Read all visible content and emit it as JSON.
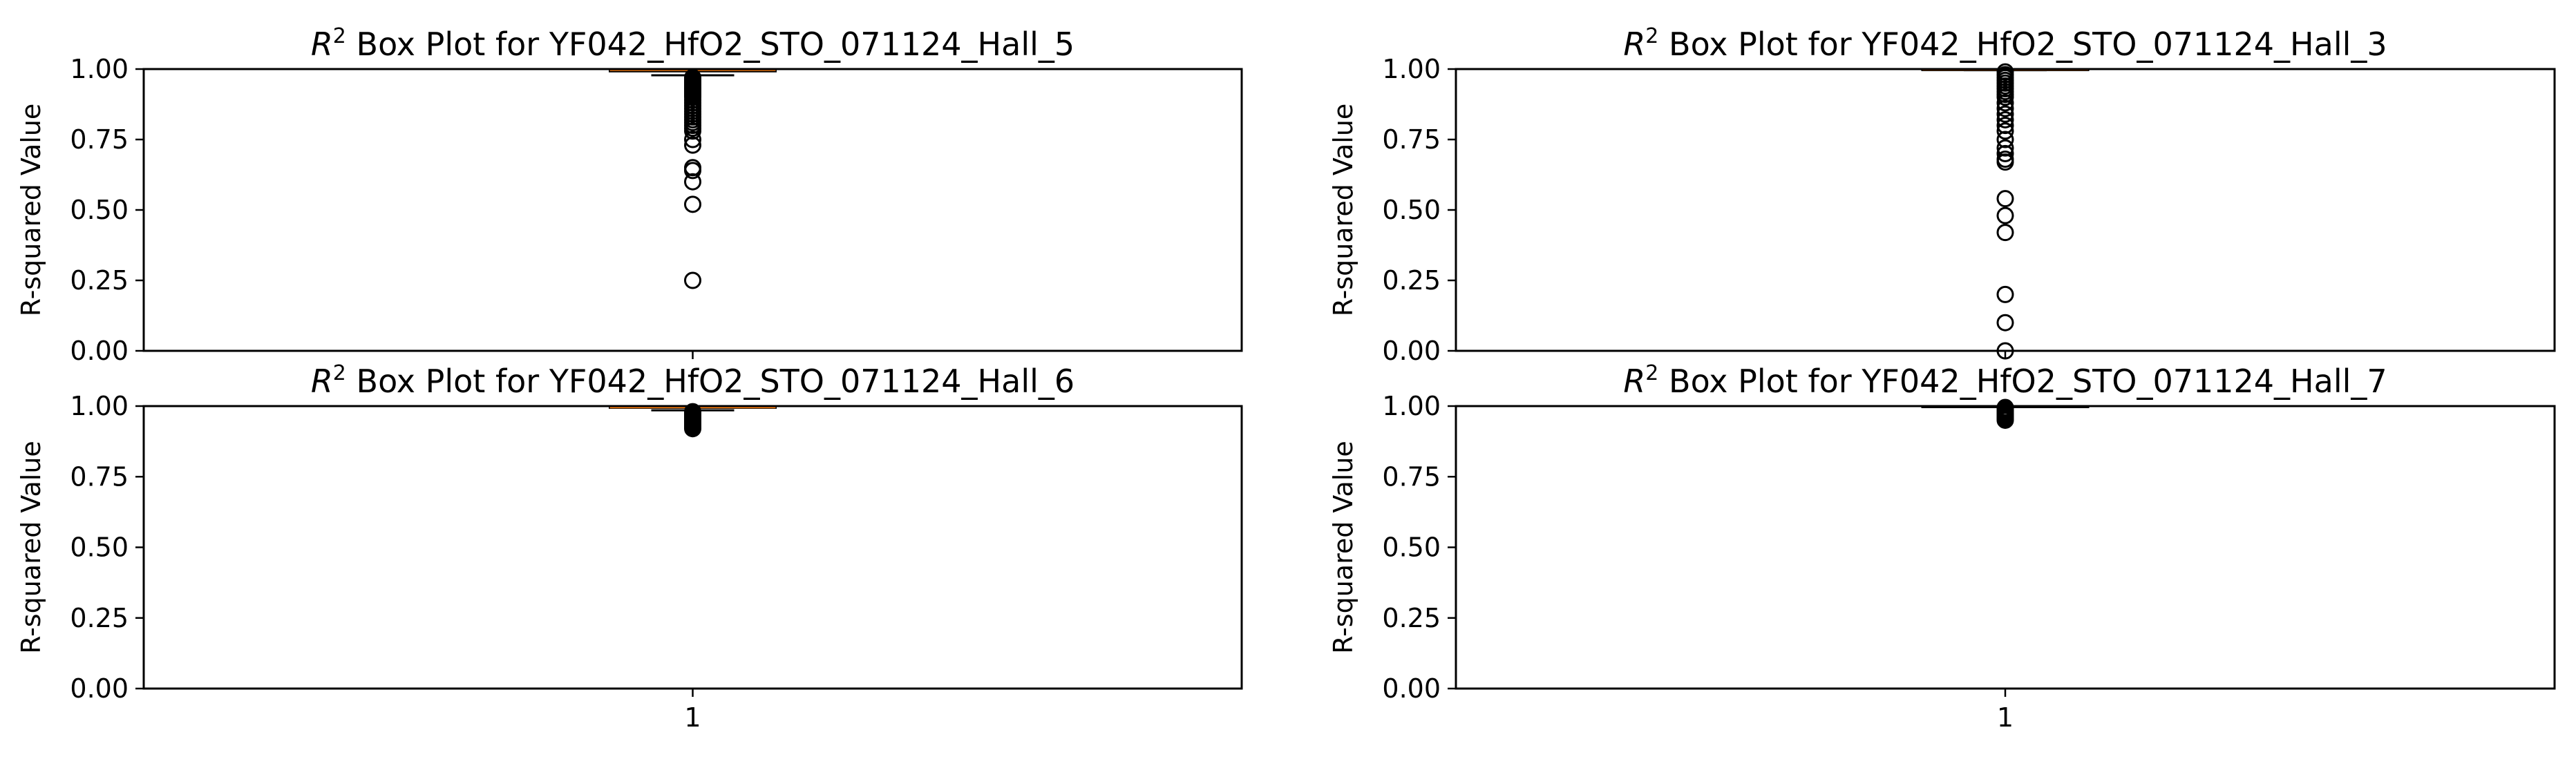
{
  "chart_data": [
    {
      "type": "box",
      "title_symbol": "R",
      "title_sup": "2",
      "title_rest": " Box Plot for YF042_HfO2_STO_071124_Hall_5",
      "ylabel": "R-squared Value",
      "ylim": [
        0,
        1
      ],
      "yticks": [
        "0.00",
        "0.25",
        "0.50",
        "0.75",
        "1.00"
      ],
      "xticks": [
        "1"
      ],
      "show_xtick_labels": false,
      "grid": false,
      "box": {
        "q1": 0.992,
        "median": 0.997,
        "q3": 0.999,
        "whisker_low": 0.978,
        "whisker_high": 1.0
      },
      "fliers": [
        0.97,
        0.965,
        0.96,
        0.955,
        0.95,
        0.945,
        0.94,
        0.935,
        0.93,
        0.925,
        0.92,
        0.915,
        0.91,
        0.905,
        0.9,
        0.89,
        0.88,
        0.87,
        0.86,
        0.85,
        0.84,
        0.83,
        0.82,
        0.81,
        0.8,
        0.79,
        0.78,
        0.75,
        0.73,
        0.65,
        0.64,
        0.6,
        0.52,
        0.25
      ]
    },
    {
      "type": "box",
      "title_symbol": "R",
      "title_sup": "2",
      "title_rest": " Box Plot for YF042_HfO2_STO_071124_Hall_3",
      "ylabel": "R-squared Value",
      "ylim": [
        0,
        1
      ],
      "yticks": [
        "0.00",
        "0.25",
        "0.50",
        "0.75",
        "1.00"
      ],
      "xticks": [
        "1"
      ],
      "show_xtick_labels": false,
      "grid": false,
      "box": {
        "q1": 0.998,
        "median": 0.999,
        "q3": 1.0,
        "whisker_low": 0.996,
        "whisker_high": 1.0
      },
      "fliers": [
        0.99,
        0.98,
        0.97,
        0.96,
        0.95,
        0.94,
        0.93,
        0.92,
        0.91,
        0.9,
        0.88,
        0.86,
        0.84,
        0.82,
        0.8,
        0.78,
        0.75,
        0.72,
        0.7,
        0.68,
        0.67,
        0.54,
        0.48,
        0.42,
        0.2,
        0.1,
        0.0
      ]
    },
    {
      "type": "box",
      "title_symbol": "R",
      "title_sup": "2",
      "title_rest": " Box Plot for YF042_HfO2_STO_071124_Hall_6",
      "ylabel": "R-squared Value",
      "ylim": [
        0,
        1
      ],
      "yticks": [
        "0.00",
        "0.25",
        "0.50",
        "0.75",
        "1.00"
      ],
      "xticks": [
        "1"
      ],
      "show_xtick_labels": true,
      "grid": false,
      "box": {
        "q1": 0.994,
        "median": 0.996,
        "q3": 0.998,
        "whisker_low": 0.985,
        "whisker_high": 1.0
      },
      "fliers": [
        0.98,
        0.975,
        0.97,
        0.965,
        0.96,
        0.955,
        0.95,
        0.945,
        0.94,
        0.935,
        0.93,
        0.925,
        0.92
      ]
    },
    {
      "type": "box",
      "title_symbol": "R",
      "title_sup": "2",
      "title_rest": " Box Plot for YF042_HfO2_STO_071124_Hall_7",
      "ylabel": "R-squared Value",
      "ylim": [
        0,
        1
      ],
      "yticks": [
        "0.00",
        "0.25",
        "0.50",
        "0.75",
        "1.00"
      ],
      "xticks": [
        "1"
      ],
      "show_xtick_labels": true,
      "grid": false,
      "box": {
        "q1": 0.999,
        "median": 1.0,
        "q3": 1.0,
        "whisker_low": 0.998,
        "whisker_high": 1.0
      },
      "fliers": [
        0.995,
        0.99,
        0.985,
        0.98,
        0.975,
        0.97,
        0.965,
        0.96,
        0.955,
        0.95
      ]
    }
  ]
}
